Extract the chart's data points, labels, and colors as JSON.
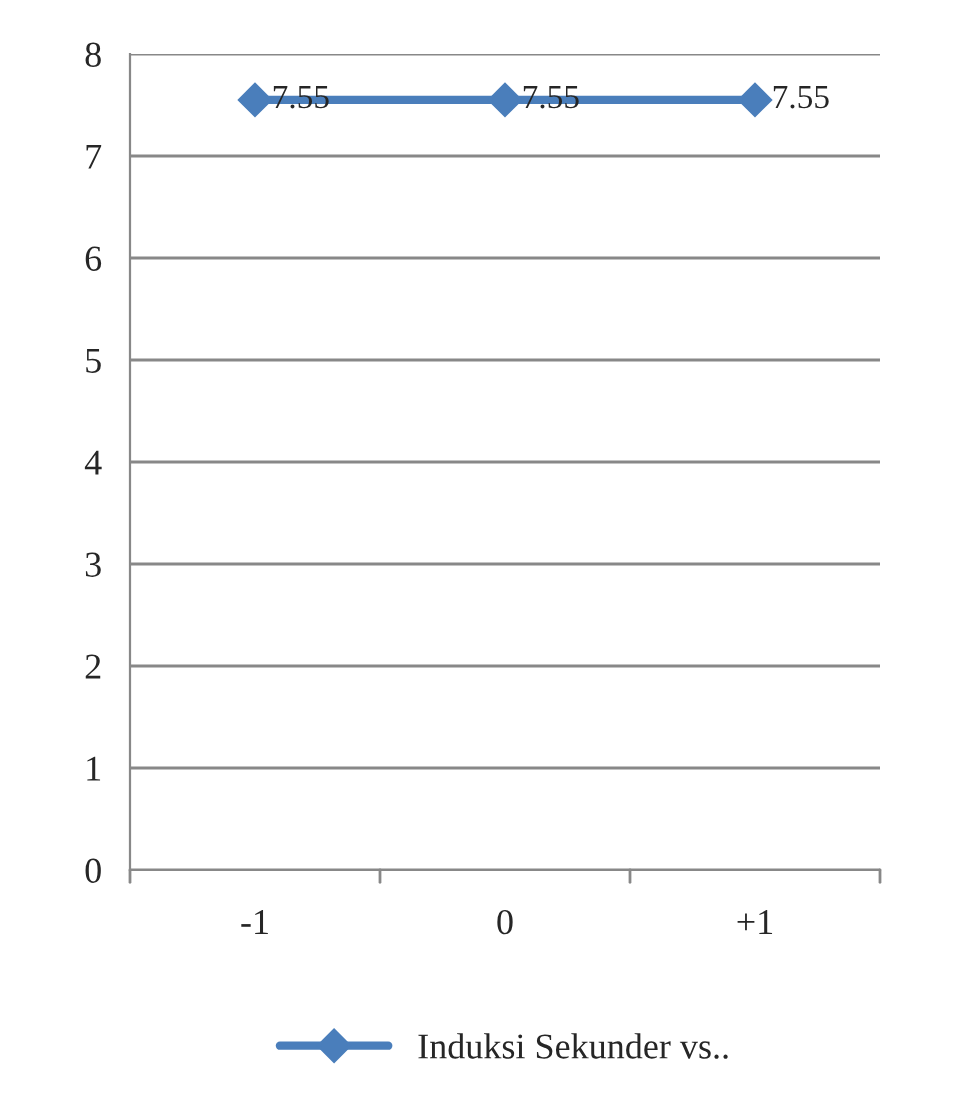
{
  "chart_data": {
    "type": "line",
    "categories": [
      "-1",
      "0",
      "+1"
    ],
    "series": [
      {
        "name": "Induksi Sekunder vs..",
        "color": "#4a7ebb",
        "values": [
          7.55,
          7.55,
          7.55
        ]
      }
    ],
    "ylim": [
      0,
      8
    ],
    "yticks": [
      0,
      1,
      2,
      3,
      4,
      5,
      6,
      7,
      8
    ],
    "grid": "y",
    "legend": "bottom",
    "marker": "diamond",
    "line_style": "solid",
    "data_labels": true
  }
}
